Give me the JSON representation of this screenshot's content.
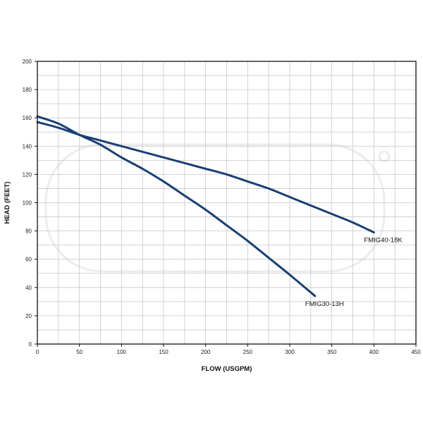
{
  "colors": {
    "series": "#1a3f73",
    "axis": "#111111",
    "grid": "#c8c8c8"
  },
  "chart_data": {
    "type": "line",
    "xlabel": "FLOW (USGPM)",
    "ylabel": "HEAD (FEET)",
    "xlim": [
      0,
      450
    ],
    "ylim": [
      0,
      200
    ],
    "xticks": [
      0,
      50,
      100,
      150,
      200,
      250,
      300,
      350,
      400,
      450
    ],
    "yticks": [
      0,
      20,
      40,
      60,
      80,
      100,
      120,
      140,
      160,
      180,
      200
    ],
    "grid": true,
    "series": [
      {
        "name": "FMIG40-18K",
        "x": [
          0,
          25,
          50,
          75,
          100,
          125,
          150,
          175,
          200,
          225,
          250,
          275,
          300,
          325,
          350,
          375,
          400
        ],
        "y": [
          157,
          153,
          148,
          144,
          140,
          136,
          132,
          128,
          124,
          120,
          115,
          110,
          104,
          98,
          92,
          86,
          79
        ]
      },
      {
        "name": "FMIG30-13H",
        "x": [
          0,
          25,
          50,
          75,
          100,
          125,
          150,
          175,
          200,
          225,
          250,
          275,
          300,
          330
        ],
        "y": [
          161,
          156,
          148,
          141,
          132,
          124,
          115,
          105,
          95,
          84,
          73,
          61,
          49,
          34
        ]
      }
    ]
  }
}
